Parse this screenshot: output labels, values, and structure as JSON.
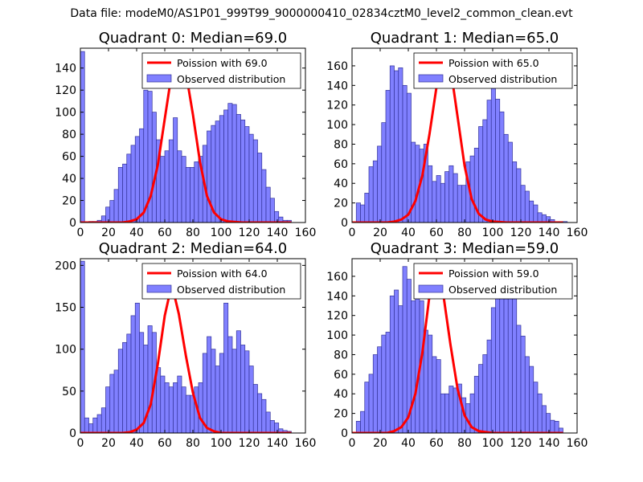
{
  "figure": {
    "title": "Data file: modeM0/AS1P01_999T99_9000000410_02834cztM0_level2_common_clean.evt"
  },
  "colors": {
    "bar_fill": "#8080ff",
    "bar_edge": "#333399",
    "curve": "#ff0000",
    "axis": "#000000"
  },
  "chart_data": [
    {
      "type": "bar",
      "title": "Quadrant 0: Median=69.0",
      "bin_width": 3,
      "bin_starts": [
        0,
        3,
        6,
        9,
        12,
        15,
        18,
        21,
        24,
        27,
        30,
        33,
        36,
        39,
        42,
        45,
        48,
        51,
        54,
        57,
        60,
        63,
        66,
        69,
        72,
        75,
        78,
        81,
        84,
        87,
        90,
        93,
        96,
        99,
        102,
        105,
        108,
        111,
        114,
        117,
        120,
        123,
        126,
        129,
        132,
        135,
        138,
        141,
        144,
        147
      ],
      "values": [
        155,
        0,
        1,
        1,
        2,
        6,
        14,
        20,
        30,
        50,
        53,
        62,
        70,
        78,
        85,
        120,
        119,
        100,
        75,
        60,
        65,
        75,
        95,
        65,
        60,
        50,
        50,
        55,
        60,
        70,
        83,
        88,
        92,
        97,
        102,
        108,
        107,
        98,
        93,
        87,
        80,
        75,
        63,
        48,
        32,
        22,
        10,
        5,
        2,
        2
      ],
      "curve": {
        "type": "line",
        "label": "Poission with 69.0",
        "mean": 69.0,
        "x": [
          0,
          30,
          35,
          40,
          45,
          50,
          55,
          60,
          65,
          69,
          72,
          75,
          80,
          85,
          90,
          95,
          100,
          105,
          115,
          150
        ],
        "y": [
          0,
          0,
          1,
          3,
          9,
          24,
          52,
          94,
          136,
          152,
          150,
          136,
          98,
          55,
          24,
          9,
          3,
          1,
          0,
          0
        ]
      },
      "legend": [
        "Poission with 69.0",
        "Observed distribution"
      ],
      "legend_position": "upper right",
      "xlim": [
        0,
        160
      ],
      "ylim": [
        0,
        158
      ],
      "xticks": [
        0,
        20,
        40,
        60,
        80,
        100,
        120,
        140,
        160
      ],
      "yticks": [
        0,
        20,
        40,
        60,
        80,
        100,
        120,
        140
      ]
    },
    {
      "type": "bar",
      "title": "Quadrant 1: Median=65.0",
      "bin_width": 3,
      "bin_starts": [
        0,
        3,
        6,
        9,
        12,
        15,
        18,
        21,
        24,
        27,
        30,
        33,
        36,
        39,
        42,
        45,
        48,
        51,
        54,
        57,
        60,
        63,
        66,
        69,
        72,
        75,
        78,
        81,
        84,
        87,
        90,
        93,
        96,
        99,
        102,
        105,
        108,
        111,
        114,
        117,
        120,
        123,
        126,
        129,
        132,
        135,
        138,
        141,
        144,
        147,
        150
      ],
      "values": [
        0,
        20,
        18,
        30,
        57,
        63,
        78,
        102,
        135,
        160,
        155,
        158,
        140,
        132,
        82,
        79,
        75,
        80,
        58,
        42,
        48,
        40,
        52,
        58,
        50,
        38,
        38,
        62,
        68,
        76,
        98,
        105,
        125,
        137,
        126,
        113,
        90,
        82,
        62,
        55,
        38,
        32,
        22,
        18,
        10,
        8,
        6,
        3,
        1,
        1,
        1
      ],
      "curve": {
        "type": "line",
        "label": "Poission with 65.0",
        "mean": 65.0,
        "x": [
          0,
          25,
          30,
          35,
          40,
          45,
          50,
          55,
          60,
          65,
          68,
          71,
          75,
          80,
          85,
          90,
          95,
          100,
          110,
          150
        ],
        "y": [
          0,
          0,
          1,
          3,
          8,
          22,
          48,
          90,
          138,
          170,
          167,
          148,
          108,
          58,
          24,
          9,
          3,
          1,
          0,
          0
        ]
      },
      "legend": [
        "Poission with 65.0",
        "Observed distribution"
      ],
      "legend_position": "upper right",
      "xlim": [
        0,
        160
      ],
      "ylim": [
        0,
        178
      ],
      "xticks": [
        0,
        20,
        40,
        60,
        80,
        100,
        120,
        140,
        160
      ],
      "yticks": [
        0,
        20,
        40,
        60,
        80,
        100,
        120,
        140,
        160
      ]
    },
    {
      "type": "bar",
      "title": "Quadrant 2: Median=64.0",
      "bin_width": 3,
      "bin_starts": [
        0,
        3,
        6,
        9,
        12,
        15,
        18,
        21,
        24,
        27,
        30,
        33,
        36,
        39,
        42,
        45,
        48,
        51,
        54,
        57,
        60,
        63,
        66,
        69,
        72,
        75,
        78,
        81,
        84,
        87,
        90,
        93,
        96,
        99,
        102,
        105,
        108,
        111,
        114,
        117,
        120,
        123,
        126,
        129,
        132,
        135,
        138,
        141,
        144,
        147
      ],
      "values": [
        205,
        18,
        11,
        18,
        22,
        30,
        55,
        70,
        75,
        100,
        108,
        118,
        140,
        155,
        120,
        105,
        128,
        120,
        78,
        68,
        60,
        55,
        60,
        68,
        55,
        45,
        45,
        55,
        60,
        95,
        115,
        100,
        80,
        95,
        155,
        115,
        100,
        122,
        105,
        98,
        80,
        58,
        47,
        40,
        25,
        15,
        12,
        5,
        3,
        2
      ],
      "curve": {
        "type": "line",
        "label": "Poission with 64.0",
        "mean": 64.0,
        "x": [
          0,
          30,
          35,
          40,
          45,
          50,
          55,
          60,
          64,
          67,
          70,
          75,
          80,
          85,
          90,
          95,
          100,
          110,
          150
        ],
        "y": [
          0,
          0,
          1,
          4,
          12,
          34,
          82,
          140,
          170,
          163,
          142,
          92,
          48,
          18,
          6,
          2,
          0,
          0,
          0
        ]
      },
      "legend": [
        "Poission with 64.0",
        "Observed distribution"
      ],
      "legend_position": "upper right",
      "xlim": [
        0,
        160
      ],
      "ylim": [
        0,
        208
      ],
      "xticks": [
        0,
        20,
        40,
        60,
        80,
        100,
        120,
        140,
        160
      ],
      "yticks": [
        0,
        50,
        100,
        150,
        200
      ]
    },
    {
      "type": "bar",
      "title": "Quadrant 3: Median=59.0",
      "bin_width": 3,
      "bin_starts": [
        0,
        3,
        6,
        9,
        12,
        15,
        18,
        21,
        24,
        27,
        30,
        33,
        36,
        39,
        42,
        45,
        48,
        51,
        54,
        57,
        60,
        63,
        66,
        69,
        72,
        75,
        78,
        81,
        84,
        87,
        90,
        93,
        96,
        99,
        102,
        105,
        108,
        111,
        114,
        117,
        120,
        123,
        126,
        129,
        132,
        135,
        138,
        141,
        144,
        147
      ],
      "values": [
        0,
        12,
        22,
        52,
        60,
        80,
        88,
        100,
        103,
        140,
        146,
        130,
        170,
        157,
        135,
        140,
        135,
        105,
        100,
        78,
        75,
        40,
        40,
        48,
        46,
        50,
        36,
        30,
        40,
        58,
        70,
        80,
        95,
        128,
        150,
        148,
        137,
        143,
        148,
        110,
        99,
        78,
        68,
        52,
        40,
        28,
        20,
        13,
        12,
        5
      ],
      "curve": {
        "type": "line",
        "label": "Poission with 59.0",
        "mean": 59.0,
        "x": [
          0,
          25,
          30,
          35,
          40,
          45,
          50,
          55,
          59,
          62,
          65,
          70,
          75,
          80,
          85,
          90,
          95,
          100,
          110,
          150
        ],
        "y": [
          0,
          0,
          2,
          6,
          16,
          40,
          82,
          140,
          170,
          163,
          140,
          90,
          45,
          18,
          6,
          2,
          1,
          0,
          0,
          0
        ]
      },
      "legend": [
        "Poission with 59.0",
        "Observed distribution"
      ],
      "legend_position": "upper right",
      "xlim": [
        0,
        160
      ],
      "ylim": [
        0,
        178
      ],
      "xticks": [
        0,
        20,
        40,
        60,
        80,
        100,
        120,
        140,
        160
      ],
      "yticks": [
        0,
        20,
        40,
        60,
        80,
        100,
        120,
        140,
        160
      ]
    }
  ]
}
